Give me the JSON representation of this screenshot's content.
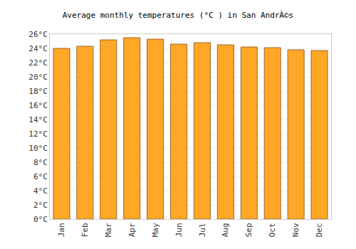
{
  "chart_data": {
    "type": "bar",
    "title": "Average monthly temperatures (°C ) in San AndrÃ©s",
    "categories": [
      "Jan",
      "Feb",
      "Mar",
      "Apr",
      "May",
      "Jun",
      "Jul",
      "Aug",
      "Sep",
      "Oct",
      "Nov",
      "Dec"
    ],
    "values": [
      24.0,
      24.3,
      25.2,
      25.5,
      25.3,
      24.6,
      24.8,
      24.5,
      24.2,
      24.1,
      23.8,
      23.7
    ],
    "color": "#ffa726",
    "ylim": [
      0,
      26
    ],
    "yticks": [
      {
        "value": 0,
        "label": "0°C"
      },
      {
        "value": 2,
        "label": "2°C"
      },
      {
        "value": 4,
        "label": "4°C"
      },
      {
        "value": 6,
        "label": "6°C"
      },
      {
        "value": 8,
        "label": "8°C"
      },
      {
        "value": 10,
        "label": "10°C"
      },
      {
        "value": 12,
        "label": "12°C"
      },
      {
        "value": 14,
        "label": "14°C"
      },
      {
        "value": 16,
        "label": "16°C"
      },
      {
        "value": 18,
        "label": "18°C"
      },
      {
        "value": 20,
        "label": "20°C"
      },
      {
        "value": 22,
        "label": "22°C"
      },
      {
        "value": 24,
        "label": "24°C"
      },
      {
        "value": 26,
        "label": "26°C"
      }
    ],
    "grid": true
  }
}
